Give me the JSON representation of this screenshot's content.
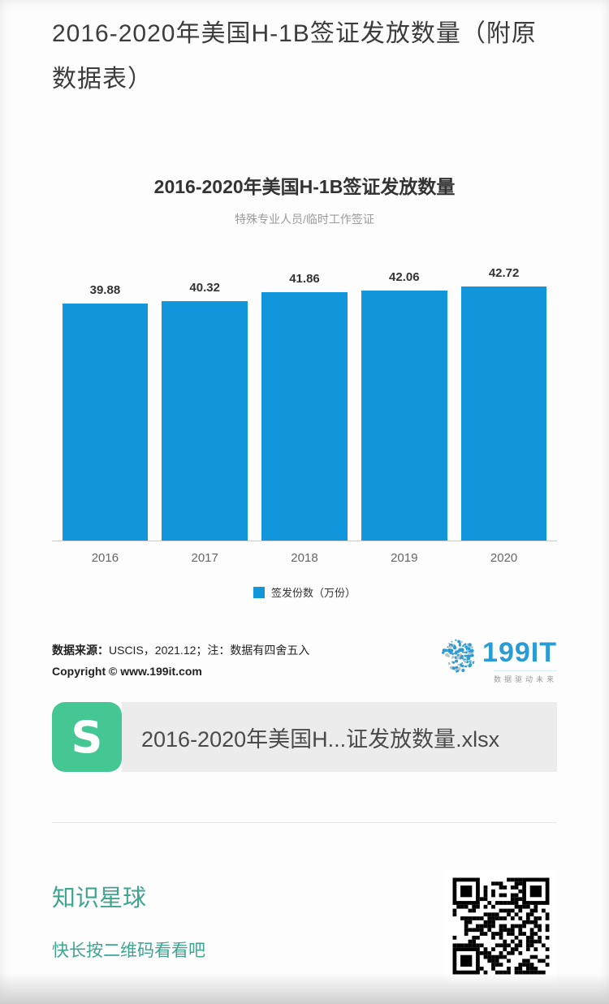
{
  "page": {
    "title": "2016-2020年美国H-1B签证发放数量（附原数据表）"
  },
  "chart": {
    "legend_label": "签发份数（万份）",
    "source_bold": "数据来源：",
    "source_rest": "USCIS，2021.12；注：数据有四舍五入",
    "copyright": "Copyright © www.199it.com"
  },
  "chart_data": {
    "type": "bar",
    "title": "2016-2020年美国H-1B签证发放数量",
    "subtitle": "特殊专业人员/临时工作签证",
    "categories": [
      "2016",
      "2017",
      "2018",
      "2019",
      "2020"
    ],
    "values": [
      39.88,
      40.32,
      41.86,
      42.06,
      42.72
    ],
    "legend": [
      "签发份数（万份）"
    ],
    "ylabel": "",
    "xlabel": "",
    "ylim": [
      0,
      44
    ],
    "grid": false,
    "legend_position": "bottom",
    "bar_color": "#1296db"
  },
  "logo": {
    "text": "199IT",
    "tagline": "数据驱动未来"
  },
  "attachment": {
    "filename": "2016-2020年美国H...证发放数量.xlsx",
    "icon_letter": "S"
  },
  "bottom": {
    "brand": "知识星球",
    "prompt": "快长按二维码看看吧"
  },
  "colors": {
    "bar": "#1296db",
    "axis": "#cccccc",
    "brand-teal": "#3fa490",
    "icon-green": "#45c794",
    "logo-blue": "#2a9cd5"
  }
}
